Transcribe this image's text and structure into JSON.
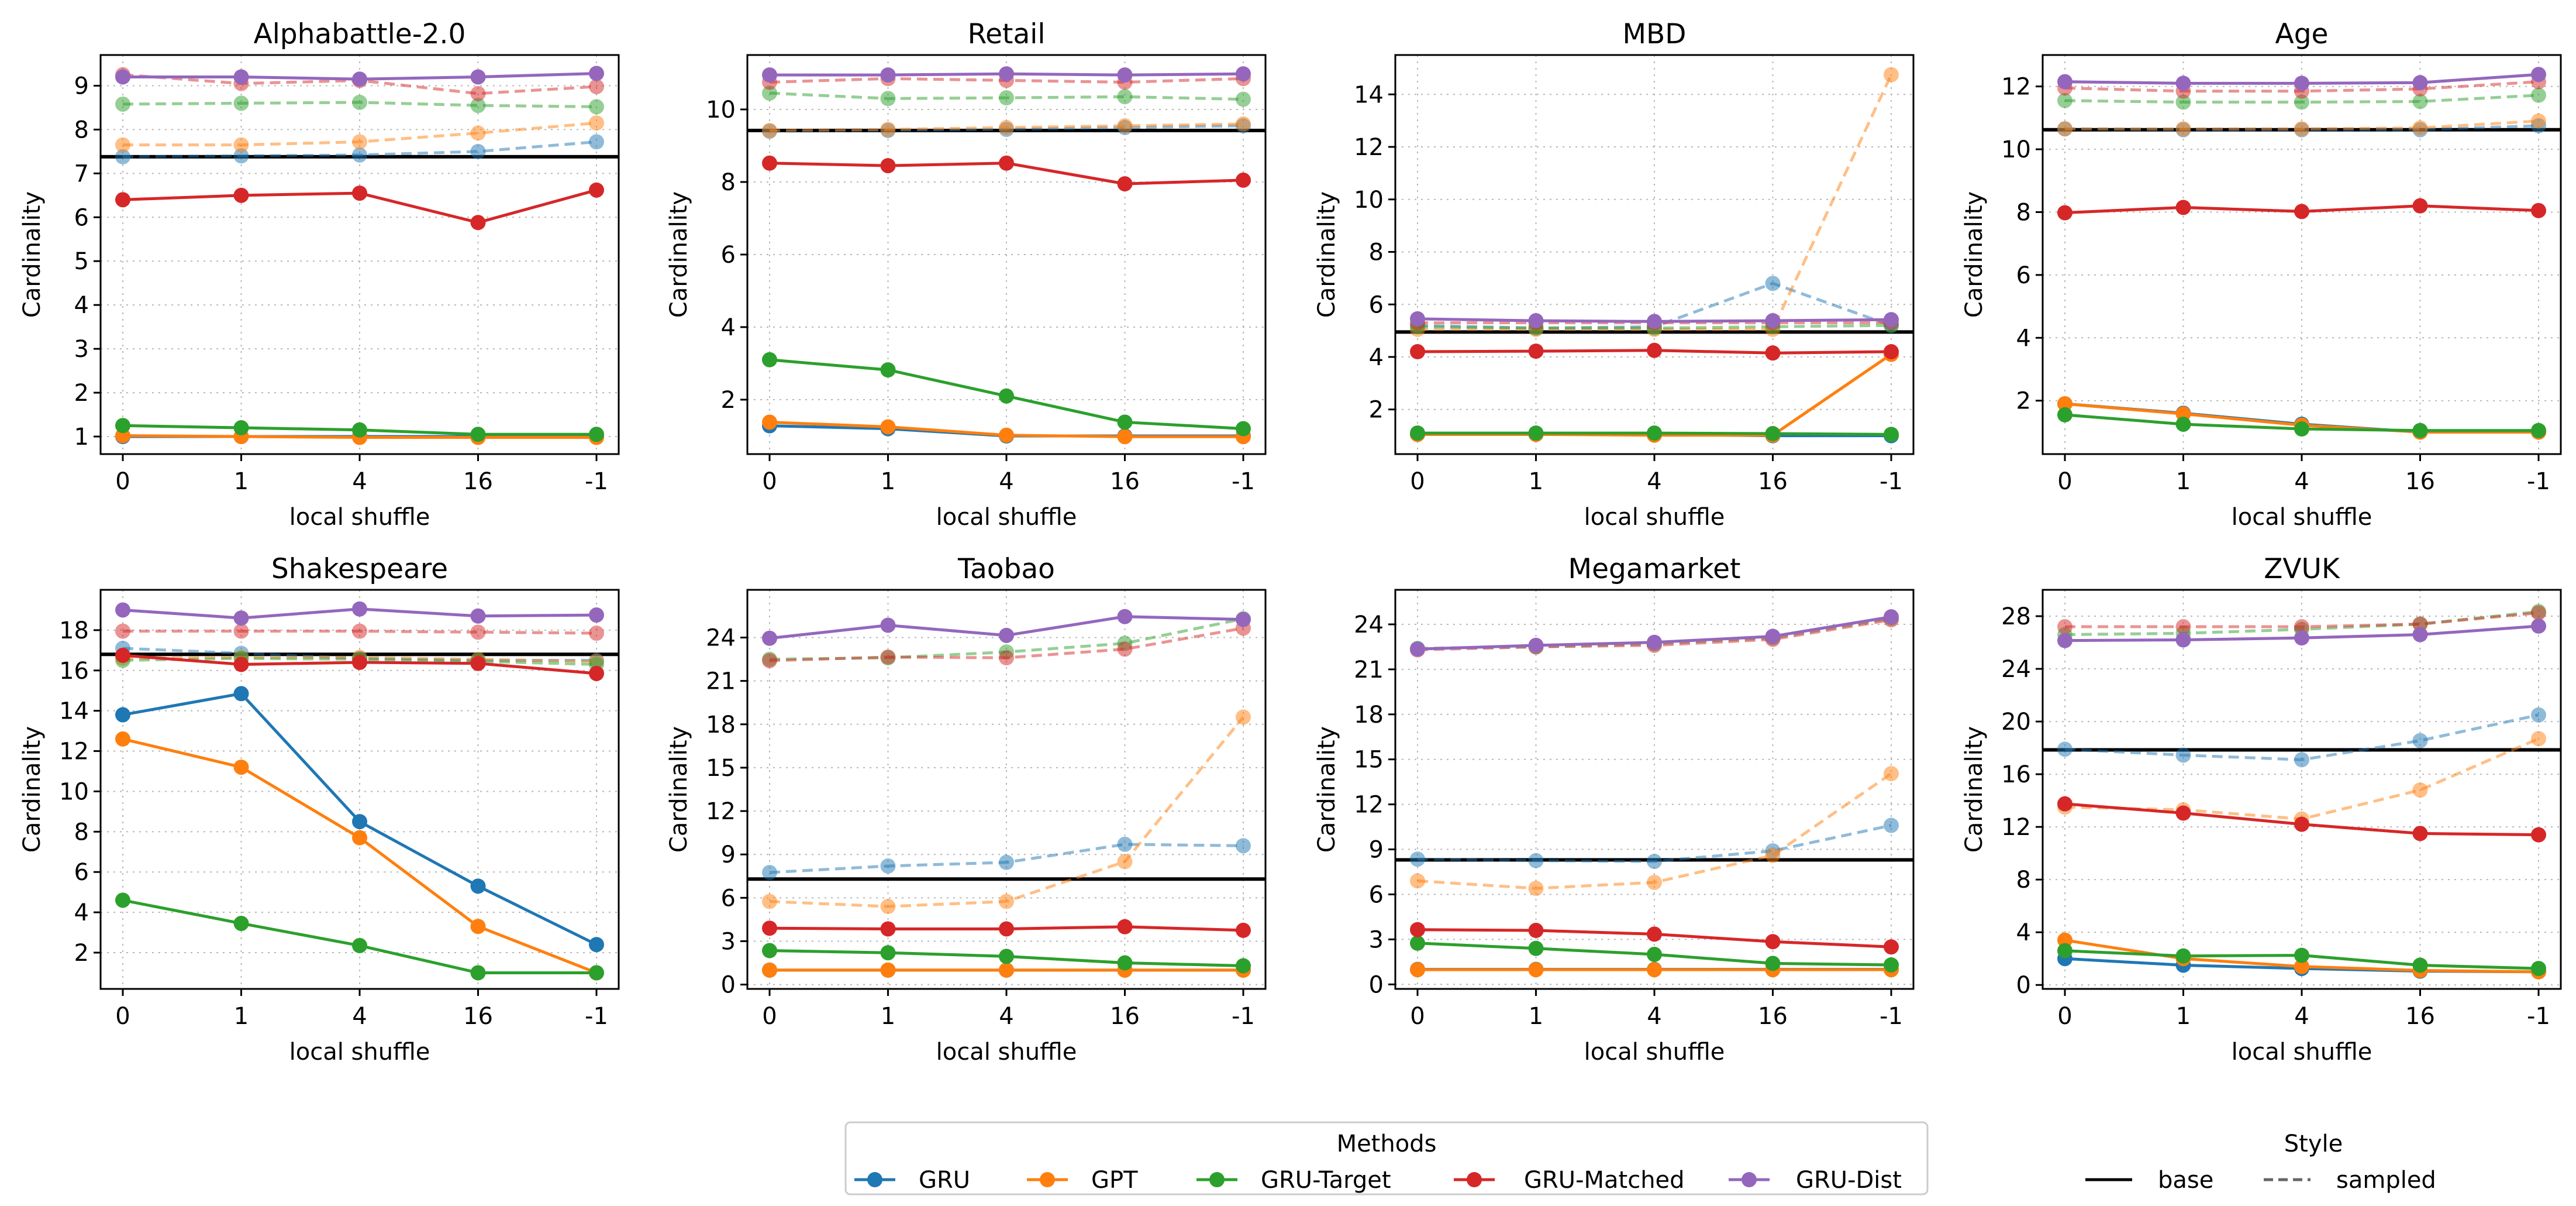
{
  "figure": {
    "legend": {
      "methods_title": "Methods",
      "methods": [
        "GRU",
        "GPT",
        "GRU-Target",
        "GRU-Matched",
        "GRU-Dist"
      ],
      "style_title": "Style",
      "styles": [
        "base",
        "sampled"
      ]
    },
    "colors": {
      "GRU": "#1f77b4",
      "GPT": "#ff7f0e",
      "GRU-Target": "#2ca02c",
      "GRU-Matched": "#d62728",
      "GRU-Dist": "#9467bd",
      "base_line": "#000000"
    }
  },
  "chart_data": [
    {
      "type": "line",
      "title": "Alphabattle-2.0",
      "xlabel": "local shuffle",
      "ylabel": "Cardinality",
      "categories": [
        "0",
        "1",
        "4",
        "16",
        "-1"
      ],
      "ylim": [
        0.6,
        9.7
      ],
      "yticks": [
        1,
        2,
        3,
        4,
        5,
        6,
        7,
        8,
        9
      ],
      "base": 7.38,
      "series": [
        {
          "name": "GRU",
          "style": "base",
          "values": [
            1.0,
            1.0,
            1.0,
            1.0,
            1.0
          ]
        },
        {
          "name": "GPT",
          "style": "base",
          "values": [
            1.02,
            1.0,
            0.98,
            0.98,
            0.98
          ]
        },
        {
          "name": "GRU-Target",
          "style": "base",
          "values": [
            1.25,
            1.2,
            1.15,
            1.05,
            1.05
          ]
        },
        {
          "name": "GRU-Matched",
          "style": "base",
          "values": [
            6.4,
            6.5,
            6.55,
            5.88,
            6.62
          ]
        },
        {
          "name": "GRU-Dist",
          "style": "base",
          "values": [
            9.2,
            9.2,
            9.15,
            9.2,
            9.28
          ]
        },
        {
          "name": "GRU",
          "style": "sampled",
          "values": [
            7.38,
            7.4,
            7.42,
            7.5,
            7.72
          ]
        },
        {
          "name": "GPT",
          "style": "sampled",
          "values": [
            7.65,
            7.65,
            7.72,
            7.92,
            8.15
          ]
        },
        {
          "name": "GRU-Target",
          "style": "sampled",
          "values": [
            8.58,
            8.6,
            8.62,
            8.55,
            8.52
          ]
        },
        {
          "name": "GRU-Matched",
          "style": "sampled",
          "values": [
            9.25,
            9.05,
            9.12,
            8.82,
            8.98
          ]
        }
      ]
    },
    {
      "type": "line",
      "title": "Retail",
      "xlabel": "local shuffle",
      "ylabel": "Cardinality",
      "categories": [
        "0",
        "1",
        "4",
        "16",
        "-1"
      ],
      "ylim": [
        0.5,
        11.5
      ],
      "yticks": [
        2,
        4,
        6,
        8,
        10
      ],
      "base": 9.42,
      "series": [
        {
          "name": "GRU",
          "style": "base",
          "values": [
            1.28,
            1.2,
            1.0,
            1.0,
            1.0
          ]
        },
        {
          "name": "GPT",
          "style": "base",
          "values": [
            1.38,
            1.25,
            1.02,
            0.98,
            0.98
          ]
        },
        {
          "name": "GRU-Target",
          "style": "base",
          "values": [
            3.1,
            2.82,
            2.1,
            1.38,
            1.2
          ]
        },
        {
          "name": "GRU-Matched",
          "style": "base",
          "values": [
            8.52,
            8.45,
            8.52,
            7.95,
            8.05
          ]
        },
        {
          "name": "GRU-Dist",
          "style": "base",
          "values": [
            10.95,
            10.95,
            10.98,
            10.95,
            10.98
          ]
        },
        {
          "name": "GRU",
          "style": "sampled",
          "values": [
            9.4,
            9.42,
            9.45,
            9.5,
            9.55
          ]
        },
        {
          "name": "GPT",
          "style": "sampled",
          "values": [
            9.42,
            9.45,
            9.5,
            9.55,
            9.6
          ]
        },
        {
          "name": "GRU-Target",
          "style": "sampled",
          "values": [
            10.45,
            10.3,
            10.32,
            10.35,
            10.28
          ]
        },
        {
          "name": "GRU-Matched",
          "style": "sampled",
          "values": [
            10.75,
            10.85,
            10.8,
            10.75,
            10.85
          ]
        }
      ]
    },
    {
      "type": "line",
      "title": "MBD",
      "xlabel": "local shuffle",
      "ylabel": "Cardinality",
      "categories": [
        "0",
        "1",
        "4",
        "16",
        "-1"
      ],
      "ylim": [
        0.3,
        15.5
      ],
      "yticks": [
        2,
        4,
        6,
        8,
        10,
        12,
        14
      ],
      "base": 4.95,
      "series": [
        {
          "name": "GRU",
          "style": "base",
          "values": [
            1.05,
            1.05,
            1.05,
            1.0,
            1.0
          ]
        },
        {
          "name": "GPT",
          "style": "base",
          "values": [
            1.05,
            1.05,
            1.02,
            1.02,
            4.1
          ]
        },
        {
          "name": "GRU-Target",
          "style": "base",
          "values": [
            1.1,
            1.1,
            1.1,
            1.08,
            1.05
          ]
        },
        {
          "name": "GRU-Matched",
          "style": "base",
          "values": [
            4.2,
            4.22,
            4.25,
            4.15,
            4.2
          ]
        },
        {
          "name": "GRU-Dist",
          "style": "base",
          "values": [
            5.45,
            5.38,
            5.35,
            5.38,
            5.42
          ]
        },
        {
          "name": "GRU",
          "style": "sampled",
          "values": [
            5.2,
            5.1,
            5.15,
            6.8,
            5.2
          ]
        },
        {
          "name": "GPT",
          "style": "sampled",
          "values": [
            5.05,
            5.05,
            5.05,
            5.05,
            14.75
          ]
        },
        {
          "name": "GRU-Target",
          "style": "sampled",
          "values": [
            5.15,
            5.1,
            5.1,
            5.15,
            5.2
          ]
        },
        {
          "name": "GRU-Matched",
          "style": "sampled",
          "values": [
            5.3,
            5.3,
            5.3,
            5.3,
            5.3
          ]
        }
      ]
    },
    {
      "type": "line",
      "title": "Age",
      "xlabel": "local shuffle",
      "ylabel": "Cardinality",
      "categories": [
        "0",
        "1",
        "4",
        "16",
        "-1"
      ],
      "ylim": [
        0.3,
        13.0
      ],
      "yticks": [
        2,
        4,
        6,
        8,
        10,
        12
      ],
      "base": 10.62,
      "series": [
        {
          "name": "GRU",
          "style": "base",
          "values": [
            1.9,
            1.6,
            1.25,
            1.0,
            1.0
          ]
        },
        {
          "name": "GPT",
          "style": "base",
          "values": [
            1.9,
            1.58,
            1.22,
            1.0,
            1.0
          ]
        },
        {
          "name": "GRU-Target",
          "style": "base",
          "values": [
            1.55,
            1.25,
            1.1,
            1.05,
            1.05
          ]
        },
        {
          "name": "GRU-Matched",
          "style": "base",
          "values": [
            7.98,
            8.15,
            8.02,
            8.2,
            8.05
          ]
        },
        {
          "name": "GRU-Dist",
          "style": "base",
          "values": [
            12.15,
            12.1,
            12.1,
            12.12,
            12.38
          ]
        },
        {
          "name": "GRU",
          "style": "sampled",
          "values": [
            10.65,
            10.62,
            10.62,
            10.62,
            10.75
          ]
        },
        {
          "name": "GPT",
          "style": "sampled",
          "values": [
            10.65,
            10.65,
            10.65,
            10.68,
            10.9
          ]
        },
        {
          "name": "GRU-Target",
          "style": "sampled",
          "values": [
            11.55,
            11.5,
            11.5,
            11.52,
            11.72
          ]
        },
        {
          "name": "GRU-Matched",
          "style": "sampled",
          "values": [
            11.95,
            11.85,
            11.85,
            11.92,
            12.15
          ]
        }
      ]
    },
    {
      "type": "line",
      "title": "Shakespeare",
      "xlabel": "local shuffle",
      "ylabel": "Cardinality",
      "categories": [
        "0",
        "1",
        "4",
        "16",
        "-1"
      ],
      "ylim": [
        0.2,
        20.0
      ],
      "yticks": [
        2,
        4,
        6,
        8,
        10,
        12,
        14,
        16,
        18
      ],
      "base": 16.8,
      "series": [
        {
          "name": "GRU",
          "style": "base",
          "values": [
            13.8,
            14.85,
            8.5,
            5.3,
            2.4
          ]
        },
        {
          "name": "GPT",
          "style": "base",
          "values": [
            12.6,
            11.2,
            7.7,
            3.3,
            1.0
          ]
        },
        {
          "name": "GRU-Target",
          "style": "base",
          "values": [
            4.6,
            3.45,
            2.35,
            1.0,
            1.0
          ]
        },
        {
          "name": "GRU-Matched",
          "style": "base",
          "values": [
            16.75,
            16.3,
            16.4,
            16.35,
            15.85
          ]
        },
        {
          "name": "GRU-Dist",
          "style": "base",
          "values": [
            19.0,
            18.6,
            19.05,
            18.7,
            18.75
          ]
        },
        {
          "name": "GRU",
          "style": "sampled",
          "values": [
            17.1,
            16.85,
            16.6,
            16.5,
            16.5
          ]
        },
        {
          "name": "GPT",
          "style": "sampled",
          "values": [
            16.6,
            16.65,
            16.65,
            16.55,
            16.45
          ]
        },
        {
          "name": "GRU-Target",
          "style": "sampled",
          "values": [
            16.5,
            16.6,
            16.55,
            16.45,
            16.3
          ]
        },
        {
          "name": "GRU-Matched",
          "style": "sampled",
          "values": [
            17.95,
            17.95,
            17.95,
            17.9,
            17.85
          ]
        }
      ]
    },
    {
      "type": "line",
      "title": "Taobao",
      "xlabel": "local shuffle",
      "ylabel": "Cardinality",
      "categories": [
        "0",
        "1",
        "4",
        "16",
        "-1"
      ],
      "ylim": [
        -0.3,
        27.3
      ],
      "yticks": [
        0,
        3,
        6,
        9,
        12,
        15,
        18,
        21,
        24
      ],
      "base": 7.3,
      "series": [
        {
          "name": "GRU",
          "style": "base",
          "values": [
            1.0,
            1.0,
            1.0,
            1.0,
            1.0
          ]
        },
        {
          "name": "GPT",
          "style": "base",
          "values": [
            1.0,
            1.0,
            1.0,
            1.0,
            1.0
          ]
        },
        {
          "name": "GRU-Target",
          "style": "base",
          "values": [
            2.35,
            2.2,
            1.95,
            1.5,
            1.3
          ]
        },
        {
          "name": "GRU-Matched",
          "style": "base",
          "values": [
            3.9,
            3.85,
            3.85,
            4.0,
            3.75
          ]
        },
        {
          "name": "GRU-Dist",
          "style": "base",
          "values": [
            23.95,
            24.85,
            24.15,
            25.45,
            25.25
          ]
        },
        {
          "name": "GRU",
          "style": "sampled",
          "values": [
            7.75,
            8.2,
            8.45,
            9.7,
            9.6
          ]
        },
        {
          "name": "GPT",
          "style": "sampled",
          "values": [
            5.75,
            5.4,
            5.75,
            8.5,
            18.5
          ]
        },
        {
          "name": "GRU-Target",
          "style": "sampled",
          "values": [
            22.5,
            22.6,
            23.0,
            23.6,
            25.3
          ]
        },
        {
          "name": "GRU-Matched",
          "style": "sampled",
          "values": [
            22.4,
            22.65,
            22.6,
            23.2,
            24.65
          ]
        }
      ]
    },
    {
      "type": "line",
      "title": "Megamarket",
      "xlabel": "local shuffle",
      "ylabel": "Cardinality",
      "categories": [
        "0",
        "1",
        "4",
        "16",
        "-1"
      ],
      "ylim": [
        -0.3,
        26.3
      ],
      "yticks": [
        0,
        3,
        6,
        9,
        12,
        15,
        18,
        21,
        24
      ],
      "base": 8.3,
      "series": [
        {
          "name": "GRU",
          "style": "base",
          "values": [
            1.0,
            1.0,
            1.0,
            1.0,
            1.0
          ]
        },
        {
          "name": "GPT",
          "style": "base",
          "values": [
            0.98,
            0.98,
            0.98,
            0.98,
            0.98
          ]
        },
        {
          "name": "GRU-Target",
          "style": "base",
          "values": [
            2.75,
            2.4,
            2.0,
            1.4,
            1.3
          ]
        },
        {
          "name": "GRU-Matched",
          "style": "base",
          "values": [
            3.65,
            3.6,
            3.35,
            2.85,
            2.5
          ]
        },
        {
          "name": "GRU-Dist",
          "style": "base",
          "values": [
            22.35,
            22.6,
            22.8,
            23.2,
            24.5
          ]
        },
        {
          "name": "GRU",
          "style": "sampled",
          "values": [
            8.35,
            8.25,
            8.2,
            8.9,
            10.6
          ]
        },
        {
          "name": "GPT",
          "style": "sampled",
          "values": [
            6.9,
            6.4,
            6.8,
            8.6,
            14.05
          ]
        },
        {
          "name": "GRU-Target",
          "style": "sampled",
          "values": [
            22.4,
            22.5,
            22.7,
            23.1,
            24.4
          ]
        },
        {
          "name": "GRU-Matched",
          "style": "sampled",
          "values": [
            22.3,
            22.5,
            22.6,
            23.0,
            24.3
          ]
        }
      ]
    },
    {
      "type": "line",
      "title": "ZVUK",
      "xlabel": "local shuffle",
      "ylabel": "Cardinality",
      "categories": [
        "0",
        "1",
        "4",
        "16",
        "-1"
      ],
      "ylim": [
        -0.3,
        30.0
      ],
      "yticks": [
        0,
        4,
        8,
        12,
        16,
        20,
        24,
        28
      ],
      "base": 17.85,
      "series": [
        {
          "name": "GRU",
          "style": "base",
          "values": [
            2.0,
            1.5,
            1.25,
            1.05,
            1.0
          ]
        },
        {
          "name": "GPT",
          "style": "base",
          "values": [
            3.4,
            2.0,
            1.4,
            1.1,
            1.0
          ]
        },
        {
          "name": "GRU-Target",
          "style": "base",
          "values": [
            2.6,
            2.2,
            2.25,
            1.5,
            1.25
          ]
        },
        {
          "name": "GRU-Matched",
          "style": "base",
          "values": [
            13.75,
            13.05,
            12.2,
            11.5,
            11.4
          ]
        },
        {
          "name": "GRU-Dist",
          "style": "base",
          "values": [
            26.15,
            26.2,
            26.35,
            26.6,
            27.25
          ]
        },
        {
          "name": "GRU",
          "style": "sampled",
          "values": [
            17.9,
            17.45,
            17.1,
            18.55,
            20.5
          ]
        },
        {
          "name": "GPT",
          "style": "sampled",
          "values": [
            13.5,
            13.3,
            12.6,
            14.8,
            18.7
          ]
        },
        {
          "name": "GRU-Target",
          "style": "sampled",
          "values": [
            26.6,
            26.7,
            27.0,
            27.4,
            28.35
          ]
        },
        {
          "name": "GRU-Matched",
          "style": "sampled",
          "values": [
            27.2,
            27.2,
            27.2,
            27.4,
            28.25
          ]
        }
      ]
    }
  ]
}
